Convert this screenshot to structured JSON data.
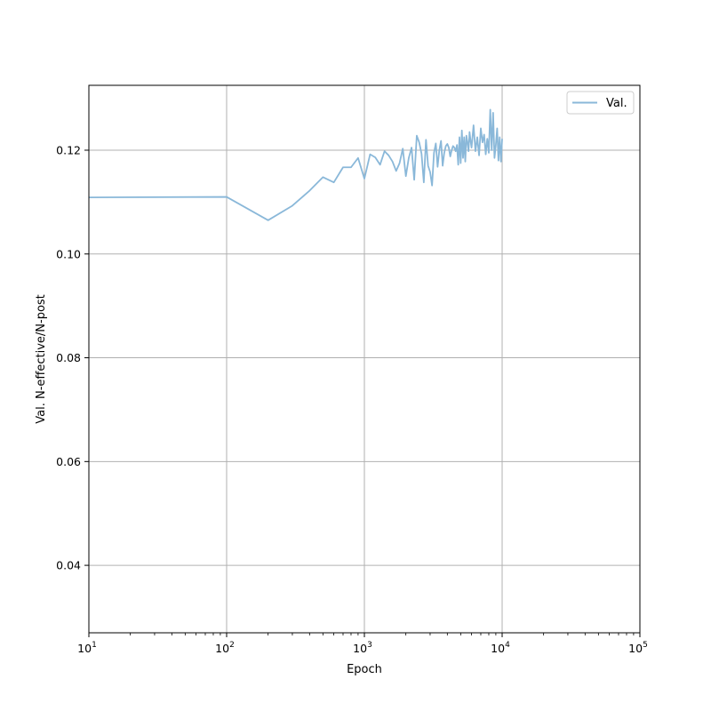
{
  "chart_data": {
    "type": "line",
    "title": "",
    "xlabel": "Epoch",
    "ylabel": "Val. N-effective/N-post",
    "x_scale": "log",
    "xlim": [
      10,
      100000
    ],
    "ylim": [
      0.027,
      0.1325
    ],
    "x_ticks": [
      {
        "value": 10,
        "base": "10",
        "exp": "1"
      },
      {
        "value": 100,
        "base": "10",
        "exp": "2"
      },
      {
        "value": 1000,
        "base": "10",
        "exp": "3"
      },
      {
        "value": 10000,
        "base": "10",
        "exp": "4"
      },
      {
        "value": 100000,
        "base": "10",
        "exp": "5"
      }
    ],
    "y_ticks": [
      {
        "value": 0.04,
        "label": "0.04"
      },
      {
        "value": 0.06,
        "label": "0.06"
      },
      {
        "value": 0.08,
        "label": "0.08"
      },
      {
        "value": 0.1,
        "label": "0.10"
      },
      {
        "value": 0.12,
        "label": "0.12"
      }
    ],
    "grid": true,
    "legend_position": "top-right",
    "colors": {
      "series": "#8ab8d9",
      "grid": "#b0b0b0",
      "axes": "#000000"
    },
    "series": [
      {
        "name": "Val.",
        "x": [
          10,
          100,
          200,
          300,
          400,
          500,
          600,
          700,
          800,
          900,
          1000,
          1100,
          1200,
          1300,
          1400,
          1500,
          1600,
          1700,
          1800,
          1900,
          2000,
          2100,
          2200,
          2300,
          2400,
          2500,
          2600,
          2700,
          2800,
          2900,
          3000,
          3100,
          3200,
          3300,
          3400,
          3500,
          3600,
          3700,
          3800,
          3900,
          4000,
          4100,
          4200,
          4300,
          4400,
          4500,
          4600,
          4700,
          4800,
          4900,
          5000,
          5100,
          5200,
          5300,
          5400,
          5500,
          5600,
          5700,
          5800,
          5900,
          6000,
          6200,
          6400,
          6600,
          6800,
          7000,
          7200,
          7400,
          7600,
          7800,
          8000,
          8200,
          8400,
          8600,
          8800,
          9000,
          9200,
          9400,
          9600,
          9800,
          10000
        ],
        "values": [
          0.1109,
          0.111,
          0.1065,
          0.1093,
          0.1122,
          0.1148,
          0.1138,
          0.1167,
          0.1167,
          0.1185,
          0.1145,
          0.1192,
          0.1186,
          0.1172,
          0.1198,
          0.119,
          0.1178,
          0.116,
          0.1175,
          0.1203,
          0.115,
          0.1185,
          0.1205,
          0.1143,
          0.1228,
          0.1215,
          0.1193,
          0.1138,
          0.122,
          0.117,
          0.1158,
          0.1132,
          0.1195,
          0.1213,
          0.1168,
          0.12,
          0.1218,
          0.117,
          0.1195,
          0.1208,
          0.1212,
          0.1205,
          0.1188,
          0.12,
          0.1208,
          0.1205,
          0.1198,
          0.121,
          0.1172,
          0.1225,
          0.1175,
          0.1238,
          0.1185,
          0.1225,
          0.1178,
          0.1228,
          0.1215,
          0.1198,
          0.1235,
          0.1218,
          0.1205,
          0.1248,
          0.1198,
          0.1225,
          0.119,
          0.1242,
          0.1215,
          0.123,
          0.1192,
          0.1222,
          0.1195,
          0.1278,
          0.12,
          0.1272,
          0.1185,
          0.121,
          0.1242,
          0.118,
          0.1225,
          0.1178,
          0.1222
        ]
      }
    ]
  }
}
